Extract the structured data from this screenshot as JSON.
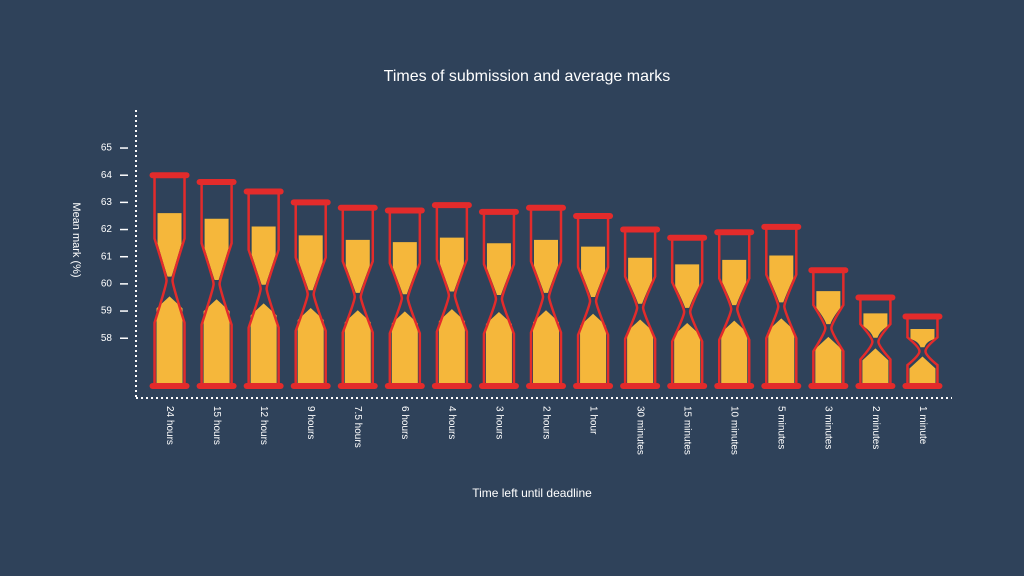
{
  "chart_data": {
    "type": "hourglass",
    "title": "Times of submission and average marks",
    "x_label": "Time left until deadline",
    "y_label": "Mean mark (%)",
    "categories": [
      "24 hours",
      "15 hours",
      "12 hours",
      "9 hours",
      "7.5 hours",
      "6 hours",
      "4 hours",
      "3 hours",
      "2 hours",
      "1 hour",
      "30 minutes",
      "15 minutes",
      "10 minutes",
      "5 minutes",
      "3 minutes",
      "2 minutes",
      "1 minute"
    ],
    "values": [
      64.0,
      63.75,
      63.4,
      63.0,
      62.8,
      62.7,
      62.9,
      62.65,
      62.8,
      62.5,
      62.0,
      61.7,
      61.9,
      62.1,
      60.5,
      59.5,
      58.8
    ],
    "color": "#e32b2b",
    "sand_color": "#f5b73b",
    "ylim": [
      55.8,
      66.4
    ],
    "yticks": [
      58,
      59,
      60,
      61,
      62,
      63,
      64,
      65
    ],
    "grid": false
  }
}
